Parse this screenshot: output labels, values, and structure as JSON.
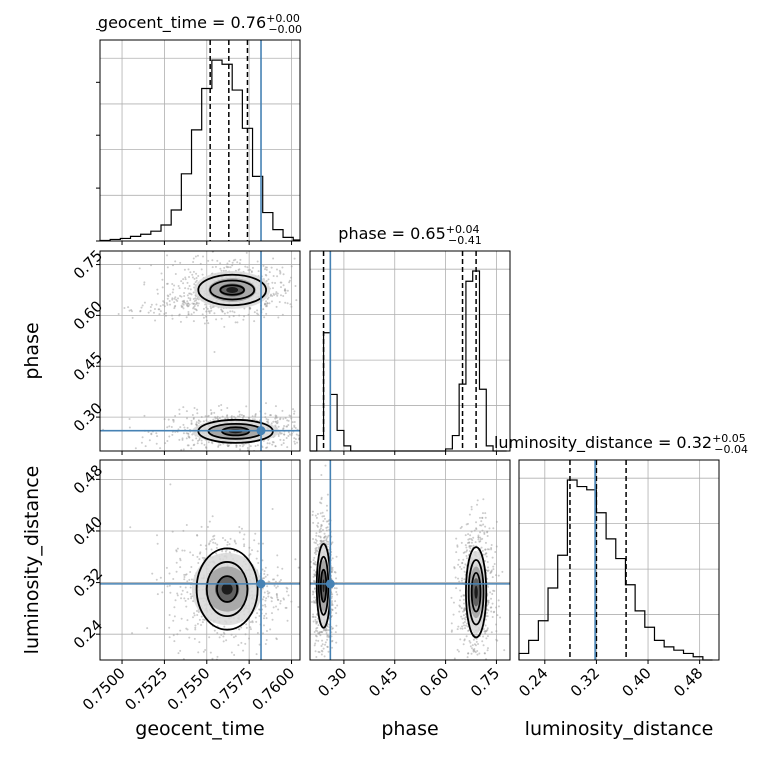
{
  "chart_data": {
    "type": "corner",
    "parameters": [
      "geocent_time",
      "phase",
      "luminosity_distance"
    ],
    "truths": {
      "geocent_time": 0.7582,
      "phase": 0.26,
      "luminosity_distance": 0.318
    },
    "colors": {
      "truth": "#4682b4",
      "hist": "#000000",
      "grid": "#b0b0b0",
      "scatter": "#9a9a9a"
    },
    "titles": [
      {
        "param": "geocent_time",
        "label": "geocent_time = 0.76",
        "sup": "+0.00",
        "sub": "−0.00"
      },
      {
        "param": "phase",
        "label": "phase = 0.65",
        "sup": "+0.04",
        "sub": "−0.41"
      },
      {
        "param": "luminosity_distance",
        "label": "luminosity_distance = 0.32",
        "sup": "+0.05",
        "sub": "−0.04"
      }
    ],
    "axes": {
      "geocent_time": {
        "label": "geocent_time",
        "range": [
          0.7487,
          0.7605
        ],
        "ticks": [
          0.75,
          0.7525,
          0.755,
          0.7575,
          0.76
        ],
        "tick_labels": [
          "0.7500",
          "0.7525",
          "0.7550",
          "0.7575",
          "0.7600"
        ]
      },
      "phase": {
        "label": "phase",
        "range": [
          0.2,
          0.79
        ],
        "ticks": [
          0.3,
          0.45,
          0.6,
          0.75
        ],
        "tick_labels": [
          "0.30",
          "0.45",
          "0.60",
          "0.75"
        ]
      },
      "luminosity_distance": {
        "label": "luminosity_distance",
        "range": [
          0.2,
          0.51
        ],
        "ticks": [
          0.24,
          0.32,
          0.4,
          0.48
        ],
        "tick_labels": [
          "0.24",
          "0.32",
          "0.40",
          "0.48"
        ]
      }
    },
    "marginals": {
      "geocent_time": {
        "quantiles": [
          0.7552,
          0.7563,
          0.7574
        ],
        "bin_edges": [
          0.7487,
          0.7493,
          0.7499,
          0.7505,
          0.7511,
          0.7517,
          0.7523,
          0.7529,
          0.7535,
          0.7541,
          0.7547,
          0.7553,
          0.7559,
          0.7565,
          0.7571,
          0.7577,
          0.7583,
          0.7589,
          0.7595,
          0.7601,
          0.7605
        ],
        "counts": [
          1,
          3,
          5,
          9,
          13,
          19,
          31,
          60,
          130,
          215,
          295,
          350,
          342,
          292,
          218,
          125,
          55,
          22,
          7,
          2
        ]
      },
      "phase": {
        "quantiles": [
          0.24,
          0.65,
          0.69
        ],
        "bin_edges": [
          0.2,
          0.22,
          0.24,
          0.26,
          0.28,
          0.3,
          0.32,
          0.34,
          0.36,
          0.38,
          0.4,
          0.42,
          0.44,
          0.46,
          0.48,
          0.5,
          0.52,
          0.54,
          0.56,
          0.58,
          0.6,
          0.62,
          0.64,
          0.66,
          0.68,
          0.7,
          0.72,
          0.74,
          0.76,
          0.78
        ],
        "counts": [
          0,
          15,
          115,
          55,
          20,
          5,
          0,
          0,
          0,
          0,
          0,
          0,
          0,
          0,
          0,
          0,
          0,
          0,
          0,
          0,
          2,
          15,
          65,
          165,
          175,
          60,
          5,
          0,
          0
        ]
      },
      "luminosity_distance": {
        "quantiles": [
          0.279,
          0.32,
          0.366
        ],
        "bin_edges": [
          0.2,
          0.215,
          0.23,
          0.245,
          0.26,
          0.275,
          0.29,
          0.305,
          0.32,
          0.335,
          0.35,
          0.365,
          0.38,
          0.395,
          0.41,
          0.425,
          0.44,
          0.455,
          0.47,
          0.485,
          0.5
        ],
        "counts": [
          2,
          6,
          12,
          22,
          32,
          55,
          53,
          52,
          45,
          37,
          31,
          23,
          15,
          10,
          6,
          4,
          3,
          2,
          1,
          0
        ]
      }
    },
    "joint": [
      {
        "x": "geocent_time",
        "y": "phase",
        "clusters": [
          {
            "center": [
              0.7565,
              0.675
            ],
            "spread": [
              0.0014,
              0.035
            ],
            "tail": {
              "from": [
                0.7515,
                0.61
              ]
            },
            "contours": [
              [
                0.0007,
                0.014
              ],
              [
                0.0013,
                0.028
              ],
              [
                0.002,
                0.045
              ]
            ]
          },
          {
            "center": [
              0.7567,
              0.258
            ],
            "spread": [
              0.0016,
              0.022
            ],
            "contours": [
              [
                0.0008,
                0.012
              ],
              [
                0.0016,
                0.022
              ],
              [
                0.0022,
                0.034
              ]
            ]
          }
        ]
      },
      {
        "x": "geocent_time",
        "y": "luminosity_distance",
        "clusters": [
          {
            "center": [
              0.7562,
              0.31
            ],
            "spread": [
              0.0013,
              0.035
            ],
            "contours": [
              [
                0.0006,
                0.02
              ],
              [
                0.0012,
                0.042
              ],
              [
                0.0018,
                0.063
              ]
            ]
          }
        ]
      },
      {
        "x": "phase",
        "y": "luminosity_distance",
        "clusters": [
          {
            "center": [
              0.24,
              0.315
            ],
            "spread": [
              0.012,
              0.04
            ],
            "contours": [
              [
                0.008,
                0.025
              ],
              [
                0.014,
                0.045
              ],
              [
                0.02,
                0.065
              ]
            ]
          },
          {
            "center": [
              0.69,
              0.305
            ],
            "spread": [
              0.02,
              0.04
            ],
            "contours": [
              [
                0.013,
                0.03
              ],
              [
                0.022,
                0.05
              ],
              [
                0.03,
                0.07
              ]
            ]
          }
        ]
      }
    ]
  }
}
